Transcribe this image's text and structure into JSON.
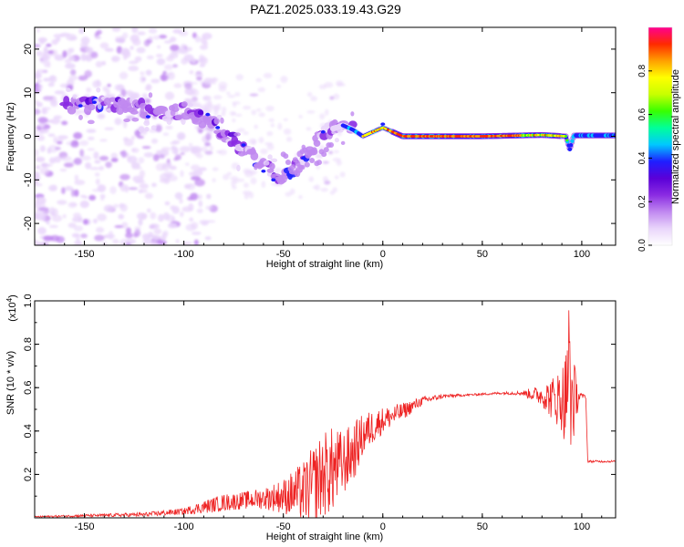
{
  "figure": {
    "title": "PAZ1.2025.033.19.43.G29"
  },
  "chart_data": [
    {
      "type": "heatmap",
      "name": "spectrogram",
      "xlabel": "Height of straight line (km)",
      "ylabel": "Frequency (Hz)",
      "xlim": [
        -175,
        117
      ],
      "ylim": [
        -25,
        25
      ],
      "x_ticks": [
        -150,
        -100,
        -50,
        0,
        50,
        100
      ],
      "x_tick_labels": [
        "-150",
        "-100",
        "-50",
        "0",
        "50",
        "100"
      ],
      "y_ticks": [
        -20,
        -10,
        0,
        10,
        20
      ],
      "y_tick_labels": [
        "-20",
        "-10",
        "0",
        "10",
        "20"
      ],
      "colorbar": {
        "label": "Normalized spectral amplitude",
        "range": [
          0,
          1
        ],
        "ticks": [
          0.0,
          0.2,
          0.4,
          0.6,
          0.8
        ],
        "tick_labels": [
          "0.0",
          "0.2",
          "0.4",
          "0.6",
          "0.8"
        ],
        "colormap": [
          "#ffffff",
          "#e9d5fb",
          "#c088f0",
          "#8a2be2",
          "#5a00d8",
          "#1f1fff",
          "#00c8ff",
          "#00ff9a",
          "#38ff00",
          "#c8ff00",
          "#ffff00",
          "#ffa000",
          "#ff2a00",
          "#ff0090"
        ]
      },
      "ridge": {
        "x": [
          -155,
          -140,
          -125,
          -110,
          -100,
          -90,
          -80,
          -70,
          -60,
          -50,
          -40,
          -30,
          -20,
          -15,
          -10,
          -5,
          0,
          5,
          10,
          50,
          80,
          92,
          94,
          96,
          110,
          117
        ],
        "y": [
          7,
          7.5,
          7,
          5,
          6,
          4,
          1,
          -3,
          -7,
          -10,
          -6,
          1,
          2.5,
          1.5,
          0,
          1,
          2,
          1,
          0,
          0,
          0.3,
          0,
          -3,
          0.2,
          0.2,
          0.2
        ]
      }
    },
    {
      "type": "line",
      "name": "snr",
      "xlabel": "Height of straight line (km)",
      "ylabel": "SNR (10 * v/v)",
      "y_scale_label": "(x10",
      "y_scale_exponent": "4",
      "xlim": [
        -175,
        117
      ],
      "ylim": [
        0,
        1.0
      ],
      "x_ticks": [
        -150,
        -100,
        -50,
        0,
        50,
        100
      ],
      "x_tick_labels": [
        "-150",
        "-100",
        "-50",
        "0",
        "50",
        "100"
      ],
      "y_ticks": [
        0.2,
        0.4,
        0.6,
        0.8,
        1.0
      ],
      "y_tick_labels": [
        "0.2",
        "0.4",
        "0.6",
        "0.8",
        "1.0"
      ],
      "color": "#ee2222",
      "envelope": {
        "x": [
          -175,
          -150,
          -120,
          -100,
          -90,
          -80,
          -70,
          -60,
          -50,
          -40,
          -35,
          -30,
          -25,
          -20,
          -15,
          -10,
          -5,
          0,
          10,
          20,
          30,
          40,
          50,
          60,
          70,
          80,
          85,
          90,
          92,
          93,
          95,
          97,
          100,
          102,
          103,
          104,
          110,
          117
        ],
        "mean": [
          0.005,
          0.01,
          0.015,
          0.03,
          0.05,
          0.07,
          0.08,
          0.09,
          0.1,
          0.12,
          0.15,
          0.2,
          0.22,
          0.25,
          0.3,
          0.38,
          0.42,
          0.45,
          0.49,
          0.54,
          0.56,
          0.565,
          0.57,
          0.575,
          0.575,
          0.565,
          0.55,
          0.55,
          0.55,
          0.55,
          0.55,
          0.56,
          0.56,
          0.56,
          0.26,
          0.26,
          0.26,
          0.26
        ],
        "amp": [
          0.003,
          0.006,
          0.01,
          0.015,
          0.03,
          0.04,
          0.04,
          0.05,
          0.08,
          0.14,
          0.18,
          0.2,
          0.2,
          0.15,
          0.14,
          0.1,
          0.08,
          0.06,
          0.04,
          0.02,
          0.01,
          0.005,
          0.005,
          0.006,
          0.01,
          0.05,
          0.1,
          0.15,
          0.25,
          0.3,
          0.3,
          0.1,
          0.01,
          0.01,
          0.005,
          0.005,
          0.005,
          0.005
        ]
      }
    }
  ]
}
